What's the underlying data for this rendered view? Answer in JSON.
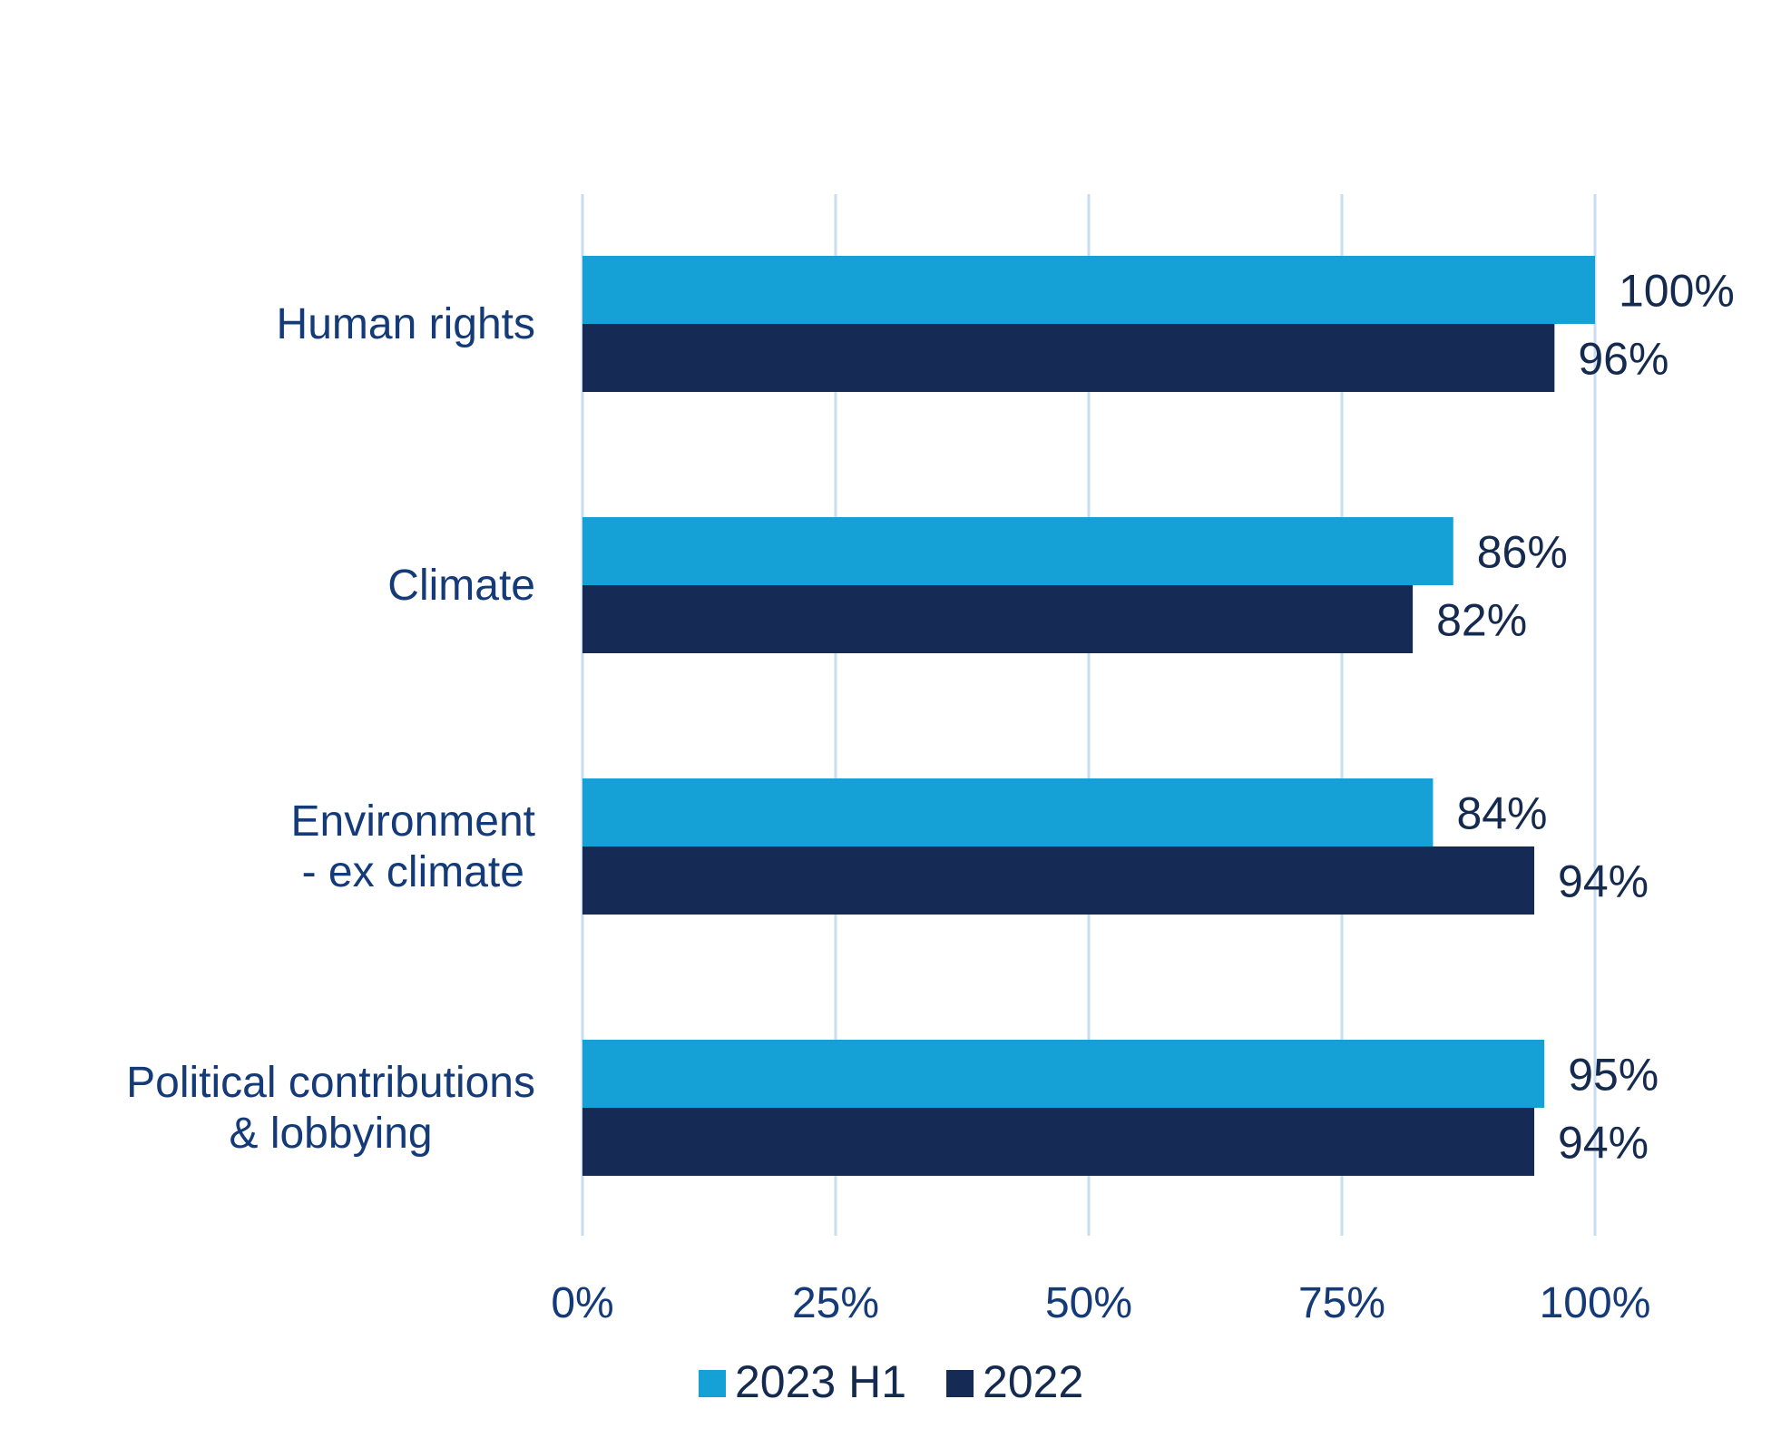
{
  "chart_data": {
    "type": "bar",
    "orientation": "horizontal",
    "categories": [
      [
        "Human rights"
      ],
      [
        "Climate"
      ],
      [
        "Environment",
        "- ex climate"
      ],
      [
        "Political contributions",
        "& lobbying"
      ]
    ],
    "series": [
      {
        "name": "2023 H1",
        "color": "#15a1d5",
        "values": [
          100,
          86,
          84,
          95
        ],
        "labels": [
          "100%",
          "86%",
          "84%",
          "95%"
        ]
      },
      {
        "name": "2022",
        "color": "#152a54",
        "values": [
          96,
          82,
          94,
          94
        ],
        "labels": [
          "96%",
          "82%",
          "94%",
          "94%"
        ]
      }
    ],
    "xlim": [
      0,
      100
    ],
    "xticks": [
      0,
      25,
      50,
      75,
      100
    ],
    "xtick_labels": [
      "0%",
      "25%",
      "50%",
      "75%",
      "100%"
    ],
    "grid": "vertical",
    "legend": "bottom-center",
    "title": "",
    "xlabel": "",
    "ylabel": ""
  }
}
